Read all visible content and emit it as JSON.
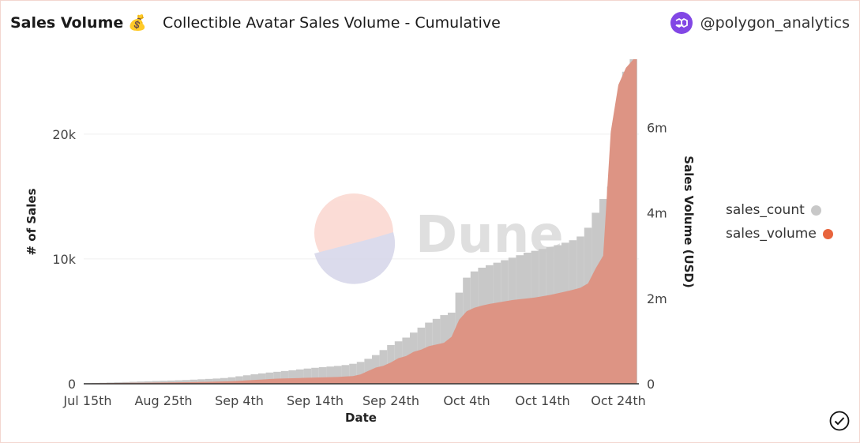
{
  "header": {
    "title": "Sales Volume",
    "emoji": "💰",
    "subtitle": "Collectible Avatar Sales Volume - Cumulative",
    "author": "@polygon_analytics"
  },
  "watermark": "Dune",
  "colors": {
    "count": "#c8c8c8",
    "volume": "#dd9484",
    "volume_legend": "#e8643c",
    "polygon": "#8247e5"
  },
  "chart_data": {
    "type": "bar+area",
    "title": "Collectible Avatar Sales Volume - Cumulative",
    "xlabel": "Date",
    "ylabel": "# of Sales",
    "y2label": "Sales Volume (USD)",
    "ylim": [
      0,
      26000
    ],
    "y2lim": [
      0,
      7600000
    ],
    "yticks": [
      {
        "v": 0,
        "label": "0"
      },
      {
        "v": 10000,
        "label": "10k"
      },
      {
        "v": 20000,
        "label": "20k"
      }
    ],
    "y2ticks": [
      {
        "v": 0,
        "label": "0"
      },
      {
        "v": 2000000,
        "label": "2m"
      },
      {
        "v": 4000000,
        "label": "4m"
      },
      {
        "v": 6000000,
        "label": "6m"
      }
    ],
    "xticks": [
      {
        "i": 0,
        "label": "Jul 15th"
      },
      {
        "i": 10,
        "label": "Aug 25th"
      },
      {
        "i": 20,
        "label": "Sep 4th"
      },
      {
        "i": 30,
        "label": "Sep 14th"
      },
      {
        "i": 40,
        "label": "Sep 24th"
      },
      {
        "i": 50,
        "label": "Oct 4th"
      },
      {
        "i": 60,
        "label": "Oct 14th"
      },
      {
        "i": 70,
        "label": "Oct 24th"
      }
    ],
    "legend": {
      "position": "right",
      "entries": [
        "sales_count",
        "sales_volume"
      ]
    },
    "grid": true,
    "series": [
      {
        "name": "sales_count",
        "axis": "left",
        "type": "bar",
        "values": [
          50,
          60,
          80,
          100,
          120,
          140,
          160,
          180,
          200,
          220,
          240,
          260,
          280,
          300,
          330,
          360,
          390,
          420,
          460,
          520,
          600,
          680,
          760,
          830,
          900,
          960,
          1020,
          1080,
          1150,
          1220,
          1280,
          1330,
          1380,
          1430,
          1500,
          1600,
          1750,
          2000,
          2300,
          2700,
          3100,
          3400,
          3700,
          4100,
          4500,
          4900,
          5200,
          5500,
          5700,
          7300,
          8500,
          9000,
          9300,
          9500,
          9700,
          9900,
          10100,
          10300,
          10500,
          10650,
          10800,
          10950,
          11100,
          11300,
          11500,
          11800,
          12500,
          13700,
          14800,
          15800,
          21400,
          25000,
          26000
        ]
      },
      {
        "name": "sales_volume",
        "axis": "right",
        "type": "area",
        "values": [
          10000,
          12000,
          14000,
          16000,
          18000,
          20000,
          22000,
          24000,
          26000,
          28000,
          30000,
          32000,
          35000,
          38000,
          40000,
          43000,
          46000,
          50000,
          55000,
          60000,
          70000,
          80000,
          90000,
          100000,
          110000,
          120000,
          125000,
          130000,
          135000,
          140000,
          145000,
          150000,
          155000,
          160000,
          170000,
          180000,
          220000,
          300000,
          380000,
          420000,
          500000,
          600000,
          650000,
          750000,
          800000,
          880000,
          920000,
          960000,
          1100000,
          1500000,
          1700000,
          1780000,
          1830000,
          1870000,
          1900000,
          1930000,
          1960000,
          1980000,
          2000000,
          2020000,
          2050000,
          2080000,
          2120000,
          2160000,
          2200000,
          2250000,
          2350000,
          2700000,
          3000000,
          5900000,
          7000000,
          7400000,
          7600000
        ]
      }
    ]
  }
}
